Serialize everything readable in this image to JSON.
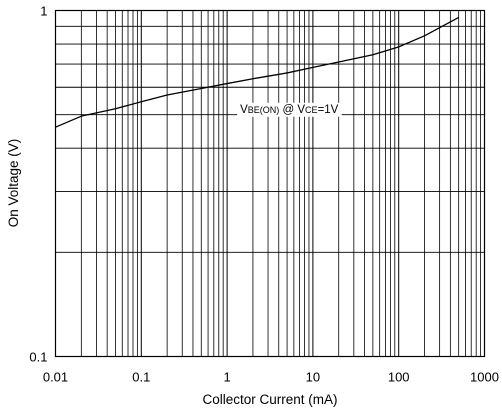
{
  "chart_data": {
    "type": "line",
    "title": "",
    "xlabel": "Collector Current (mA)",
    "ylabel": "On Voltage (V)",
    "x_scale": "log",
    "y_scale": "log",
    "xlim": [
      0.01,
      1000
    ],
    "ylim": [
      0.1,
      1
    ],
    "grid": true,
    "x_ticks": [
      {
        "value": 0.01,
        "label": "0.01"
      },
      {
        "value": 0.1,
        "label": "0.1"
      },
      {
        "value": 1,
        "label": "1"
      },
      {
        "value": 10,
        "label": "10"
      },
      {
        "value": 100,
        "label": "100"
      },
      {
        "value": 1000,
        "label": "1000"
      }
    ],
    "y_ticks": [
      {
        "value": 0.1,
        "label": "0.1"
      },
      {
        "value": 1,
        "label": "1"
      }
    ],
    "series": [
      {
        "name": "",
        "color": "#000000",
        "x": [
          0.01,
          0.02,
          0.05,
          0.1,
          0.2,
          0.5,
          1,
          2,
          5,
          10,
          20,
          50,
          100,
          200,
          500
        ],
        "y": [
          0.46,
          0.495,
          0.52,
          0.545,
          0.57,
          0.595,
          0.615,
          0.635,
          0.66,
          0.685,
          0.71,
          0.745,
          0.785,
          0.845,
          0.955
        ]
      }
    ],
    "annotations": [
      {
        "text_parts": [
          {
            "text": "V",
            "size": "normal"
          },
          {
            "text": "BE(ON)",
            "size": "sub"
          },
          {
            "text": " @ V",
            "size": "normal"
          },
          {
            "text": "CE",
            "size": "sub"
          },
          {
            "text": "=1V",
            "size": "normal"
          }
        ],
        "x": 5.3,
        "y": 0.52
      }
    ]
  }
}
